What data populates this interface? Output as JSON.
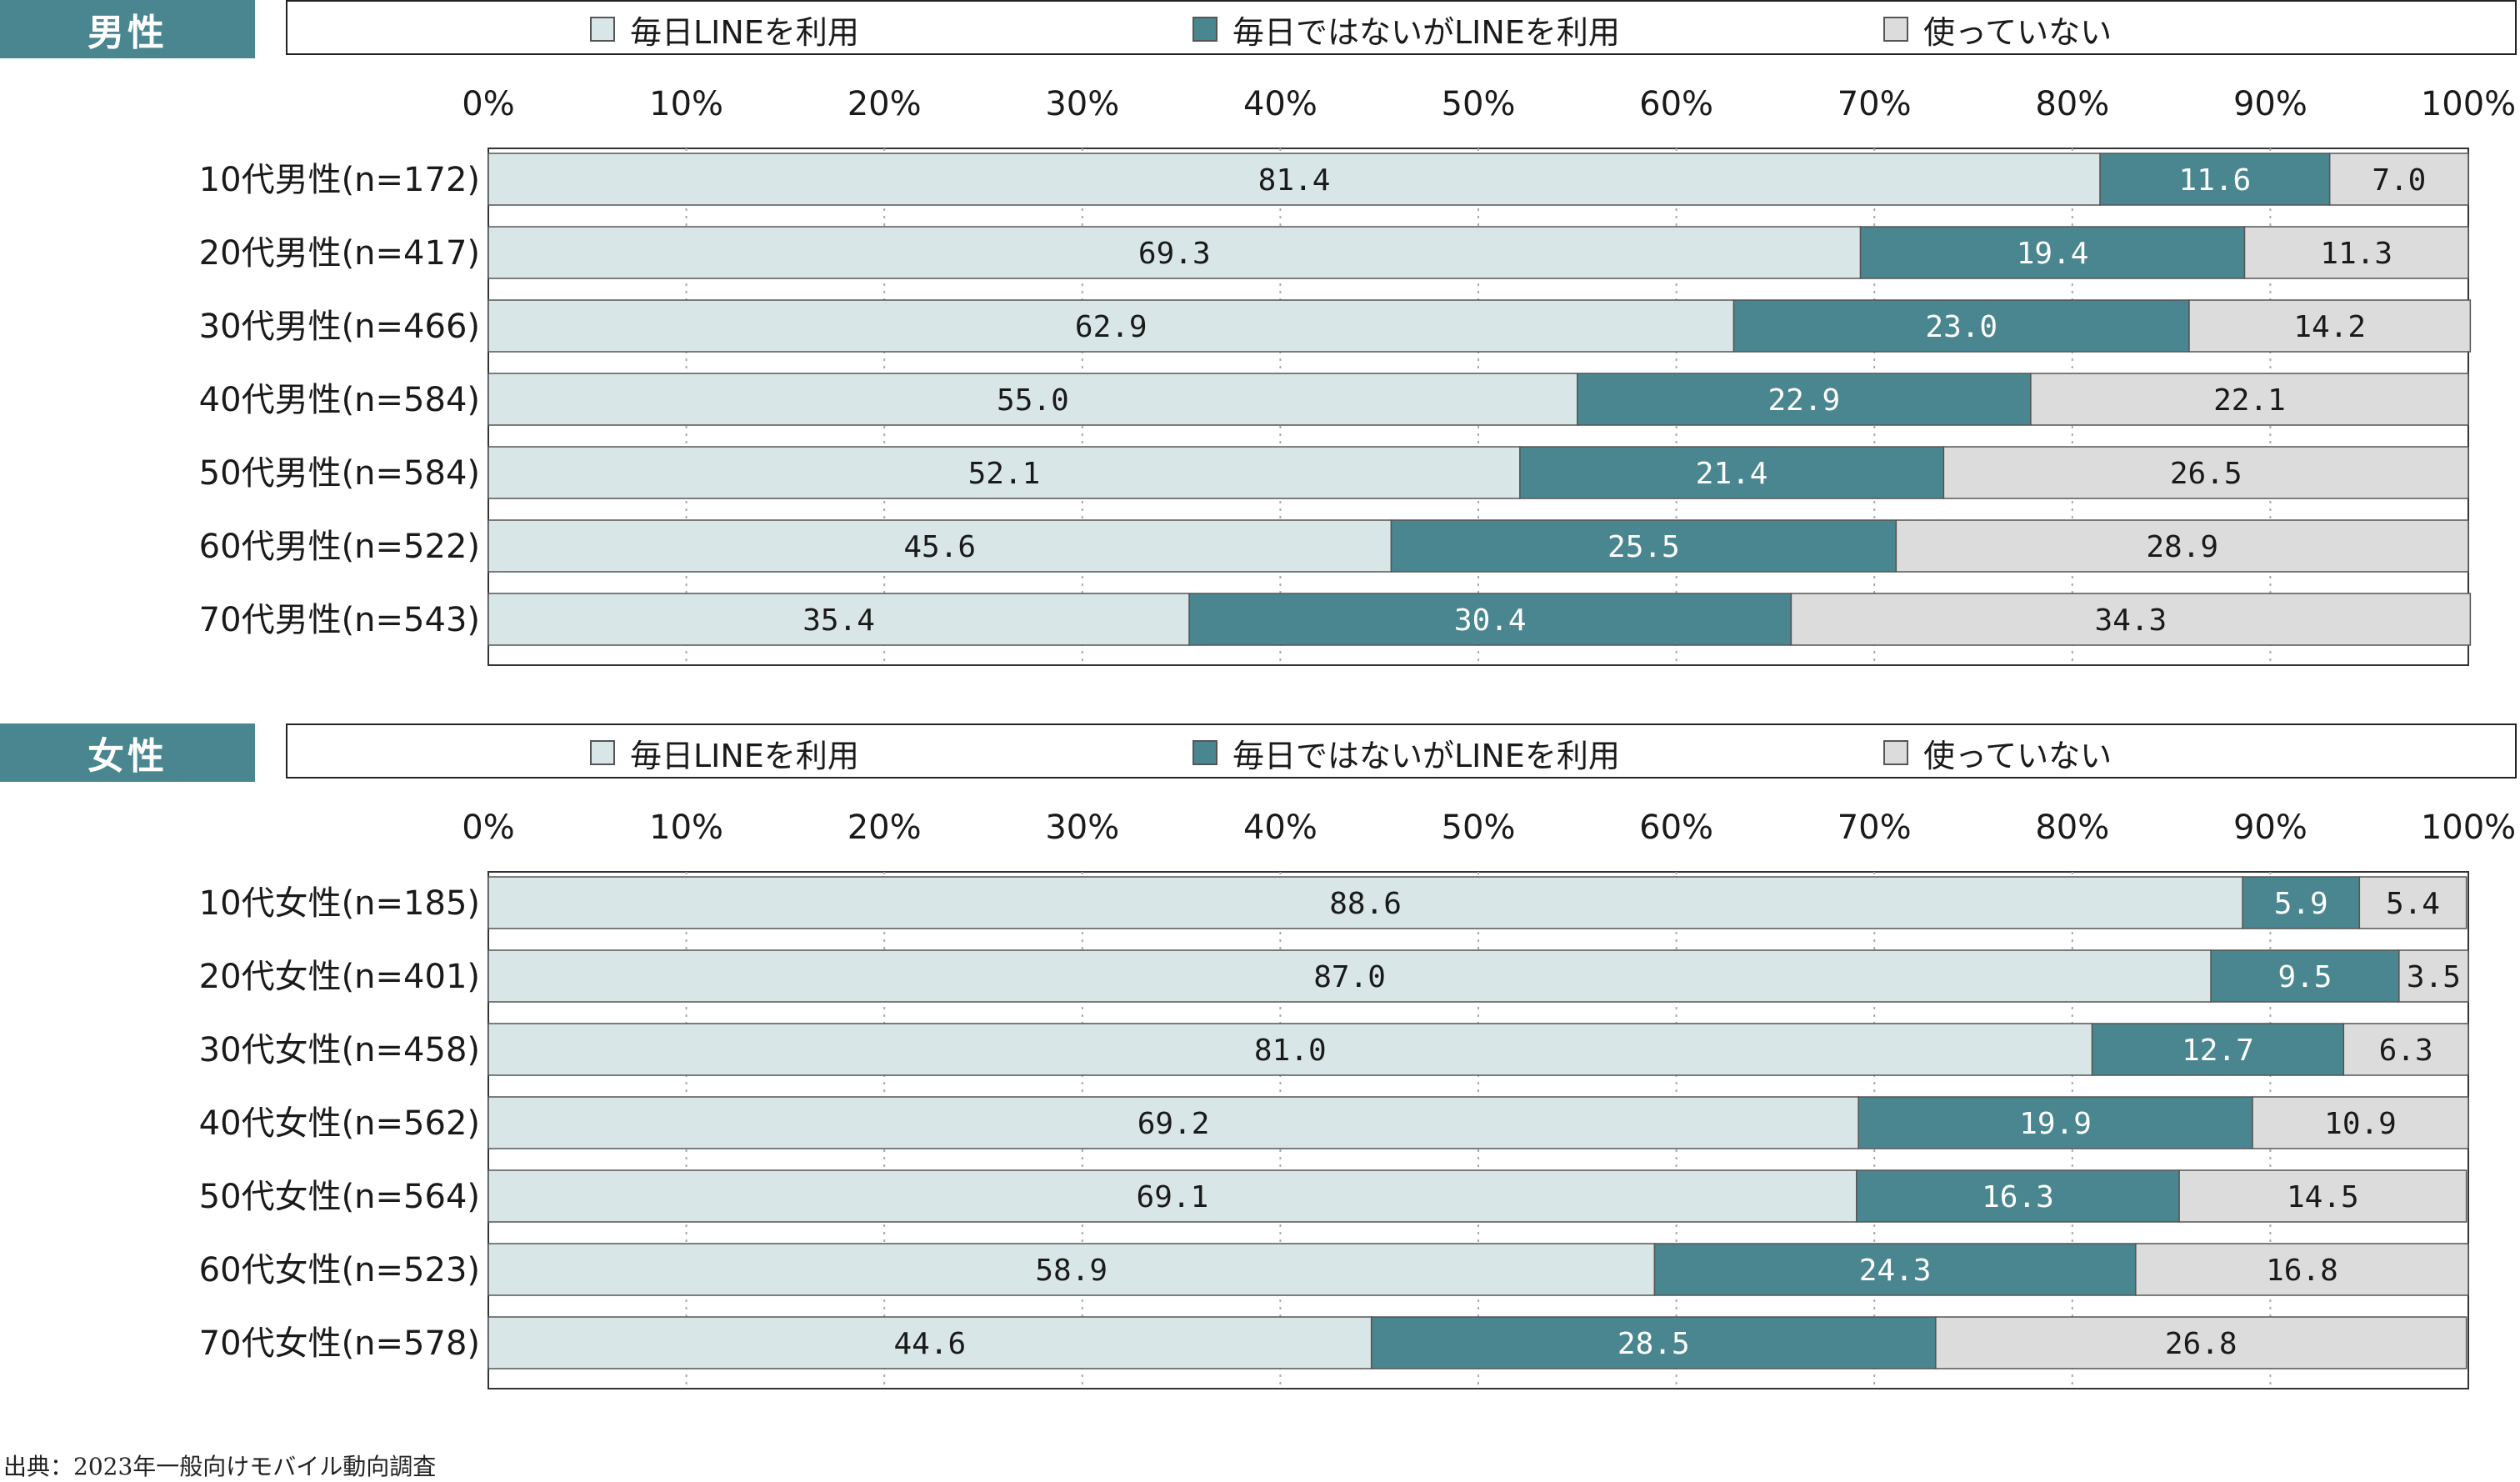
{
  "colors": {
    "daily": "#d9e6e7",
    "not_daily": "#4a868f",
    "unused": "#dcdcdc",
    "tag": "#4a868f"
  },
  "legend": {
    "daily": "毎日LINEを利用",
    "not_daily": "毎日ではないがLINEを利用",
    "unused": "使っていない"
  },
  "source": "出典：2023年一般向けモバイル動向調査",
  "chart_data": [
    {
      "type": "bar",
      "orientation": "horizontal",
      "stacked": true,
      "panel_label": "男性",
      "categories": [
        "10代男性(n=172)",
        "20代男性(n=417)",
        "30代男性(n=466)",
        "40代男性(n=584)",
        "50代男性(n=584)",
        "60代男性(n=522)",
        "70代男性(n=543)"
      ],
      "series": [
        {
          "name": "毎日LINEを利用",
          "values": [
            81.4,
            69.3,
            62.9,
            55.0,
            52.1,
            45.6,
            35.4
          ]
        },
        {
          "name": "毎日ではないがLINEを利用",
          "values": [
            11.6,
            19.4,
            23.0,
            22.9,
            21.4,
            25.5,
            30.4
          ]
        },
        {
          "name": "使っていない",
          "values": [
            7.0,
            11.3,
            14.2,
            22.1,
            26.5,
            28.9,
            34.3
          ]
        }
      ],
      "value_labels": [
        [
          "81.4",
          "11.6",
          "7.0"
        ],
        [
          "69.3",
          "19.4",
          "11.3"
        ],
        [
          "62.9",
          "23.0",
          "14.2"
        ],
        [
          "55.0",
          "22.9",
          "22.1"
        ],
        [
          "52.1",
          "21.4",
          "26.5"
        ],
        [
          "45.6",
          "25.5",
          "28.9"
        ],
        [
          "35.4",
          "30.4",
          "34.3"
        ]
      ],
      "xlim": [
        0,
        100
      ],
      "x_ticks": [
        "0%",
        "10%",
        "20%",
        "30%",
        "40%",
        "50%",
        "60%",
        "70%",
        "80%",
        "90%",
        "100%"
      ],
      "grid": true,
      "legend_position": "top"
    },
    {
      "type": "bar",
      "orientation": "horizontal",
      "stacked": true,
      "panel_label": "女性",
      "categories": [
        "10代女性(n=185)",
        "20代女性(n=401)",
        "30代女性(n=458)",
        "40代女性(n=562)",
        "50代女性(n=564)",
        "60代女性(n=523)",
        "70代女性(n=578)"
      ],
      "series": [
        {
          "name": "毎日LINEを利用",
          "values": [
            88.6,
            87.0,
            81.0,
            69.2,
            69.1,
            58.9,
            44.6
          ]
        },
        {
          "name": "毎日ではないがLINEを利用",
          "values": [
            5.9,
            9.5,
            12.7,
            19.9,
            16.3,
            24.3,
            28.5
          ]
        },
        {
          "name": "使っていない",
          "values": [
            5.4,
            3.5,
            6.3,
            10.9,
            14.5,
            16.8,
            26.8
          ]
        }
      ],
      "value_labels": [
        [
          "88.6",
          "5.9",
          "5.4"
        ],
        [
          "87.0",
          "9.5",
          "3.5"
        ],
        [
          "81.0",
          "12.7",
          "6.3"
        ],
        [
          "69.2",
          "19.9",
          "10.9"
        ],
        [
          "69.1",
          "16.3",
          "14.5"
        ],
        [
          "58.9",
          "24.3",
          "16.8"
        ],
        [
          "44.6",
          "28.5",
          "26.8"
        ]
      ],
      "xlim": [
        0,
        100
      ],
      "x_ticks": [
        "0%",
        "10%",
        "20%",
        "30%",
        "40%",
        "50%",
        "60%",
        "70%",
        "80%",
        "90%",
        "100%"
      ],
      "grid": true,
      "legend_position": "top"
    }
  ]
}
